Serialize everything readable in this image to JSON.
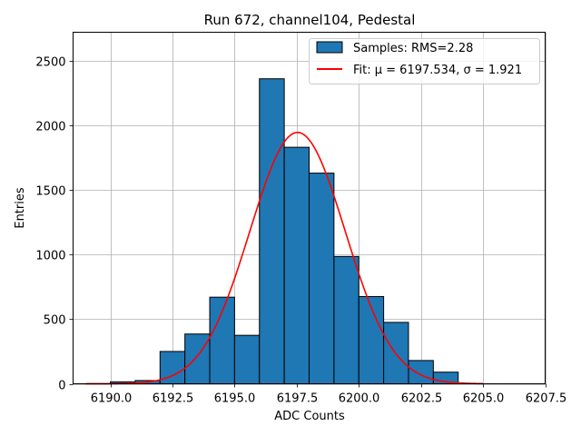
{
  "chart_data": {
    "type": "bar",
    "title": "Run 672, channel104, Pedestal",
    "xlabel": "ADC Counts",
    "ylabel": "Entries",
    "xlim": [
      6188.5,
      6207.5
    ],
    "ylim": [
      0,
      2720
    ],
    "grid": true,
    "legend_placement": "top-right",
    "x_ticks": [
      "6190.0",
      "6192.5",
      "6195.0",
      "6197.5",
      "6200.0",
      "6202.5",
      "6205.0",
      "6207.5"
    ],
    "x_tick_values": [
      6190.0,
      6192.5,
      6195.0,
      6197.5,
      6200.0,
      6202.5,
      6205.0,
      6207.5
    ],
    "y_ticks": [
      "0",
      "500",
      "1000",
      "1500",
      "2000",
      "2500"
    ],
    "y_tick_values": [
      0,
      500,
      1000,
      1500,
      2000,
      2500
    ],
    "bins": {
      "edges": [
        6190.0,
        6191.0,
        6192.0,
        6193.0,
        6194.0,
        6195.0,
        6196.0,
        6197.0,
        6198.0,
        6199.0,
        6200.0,
        6201.0,
        6202.0,
        6203.0,
        6204.0,
        6205.0
      ],
      "counts": [
        15,
        25,
        250,
        385,
        670,
        375,
        2360,
        1830,
        1630,
        985,
        675,
        475,
        180,
        90,
        0
      ]
    },
    "series": [
      {
        "name": "Samples: RMS=2.28",
        "kind": "histogram",
        "color": "#1f77b4",
        "edge_color": "#000000"
      },
      {
        "name": "Fit: μ = 6197.534, σ = 1.921",
        "kind": "gaussian-fit",
        "color": "#ff0000",
        "mu": 6197.534,
        "sigma": 1.921,
        "amplitude": 1945,
        "x_range": [
          6189.0,
          6205.0
        ]
      }
    ]
  }
}
